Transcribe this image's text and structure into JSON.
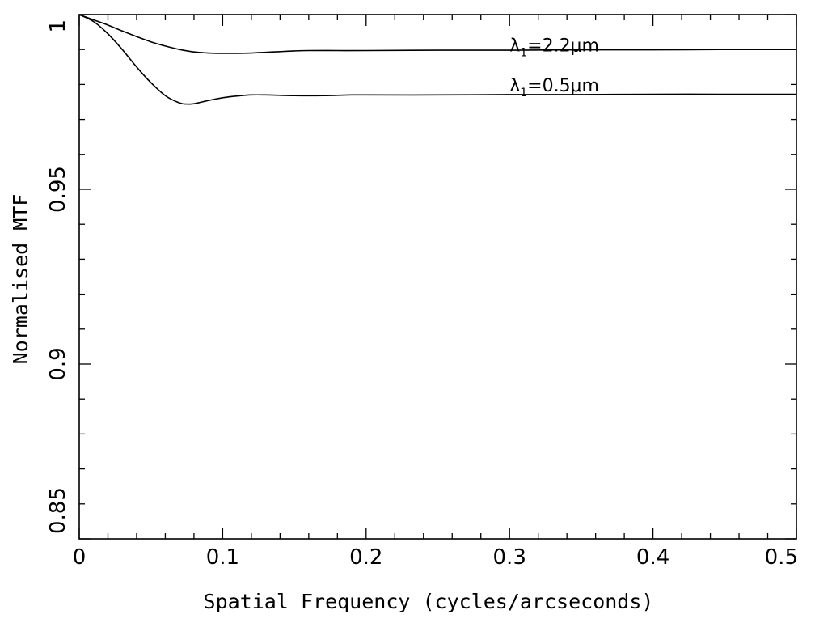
{
  "chart_data": {
    "type": "line",
    "title": "",
    "xlabel": "Spatial Frequency (cycles/arcseconds)",
    "ylabel": "Normalised MTF",
    "xlim": [
      0,
      0.5
    ],
    "ylim": [
      0.85,
      1
    ],
    "x_ticks": [
      0,
      0.1,
      0.2,
      0.3,
      0.4,
      0.5
    ],
    "x_tick_labels": [
      "0",
      "0.1",
      "0.2",
      "0.3",
      "0.4",
      "0.5"
    ],
    "y_ticks": [
      0.85,
      0.9,
      0.95,
      1
    ],
    "y_tick_labels": [
      "0.85",
      "0.9",
      "0.95",
      "1"
    ],
    "grid": false,
    "legend": "none",
    "line_color": "#000000",
    "series": [
      {
        "name": "λ1=2.2μm",
        "label_main": "λ",
        "label_sub": "1",
        "label_rest": "=2.2μm",
        "label_at": [
          0.3,
          0.9895
        ],
        "x": [
          0,
          0.01,
          0.02,
          0.03,
          0.04,
          0.05,
          0.06,
          0.07,
          0.08,
          0.09,
          0.1,
          0.11,
          0.12,
          0.13,
          0.14,
          0.15,
          0.16,
          0.18,
          0.2,
          0.25,
          0.3,
          0.35,
          0.4,
          0.45,
          0.5
        ],
        "y": [
          1,
          0.9985,
          0.997,
          0.9953,
          0.9937,
          0.9922,
          0.991,
          0.99,
          0.9893,
          0.989,
          0.9889,
          0.9889,
          0.989,
          0.9892,
          0.9894,
          0.9896,
          0.9897,
          0.9897,
          0.9897,
          0.9898,
          0.9898,
          0.9899,
          0.9899,
          0.99,
          0.99
        ]
      },
      {
        "name": "λ1=0.5μm",
        "label_main": "λ",
        "label_sub": "1",
        "label_rest": "=0.5μm",
        "label_at": [
          0.3,
          0.978
        ],
        "x": [
          0,
          0.01,
          0.02,
          0.03,
          0.04,
          0.05,
          0.06,
          0.07,
          0.075,
          0.08,
          0.09,
          0.1,
          0.11,
          0.12,
          0.13,
          0.15,
          0.17,
          0.19,
          0.2,
          0.25,
          0.3,
          0.35,
          0.4,
          0.45,
          0.5
        ],
        "y": [
          1,
          0.998,
          0.9945,
          0.99,
          0.985,
          0.9805,
          0.9768,
          0.9747,
          0.9744,
          0.9745,
          0.9754,
          0.9762,
          0.9767,
          0.977,
          0.977,
          0.9768,
          0.9768,
          0.977,
          0.977,
          0.977,
          0.9771,
          0.9771,
          0.9772,
          0.9772,
          0.9772
        ]
      }
    ]
  }
}
